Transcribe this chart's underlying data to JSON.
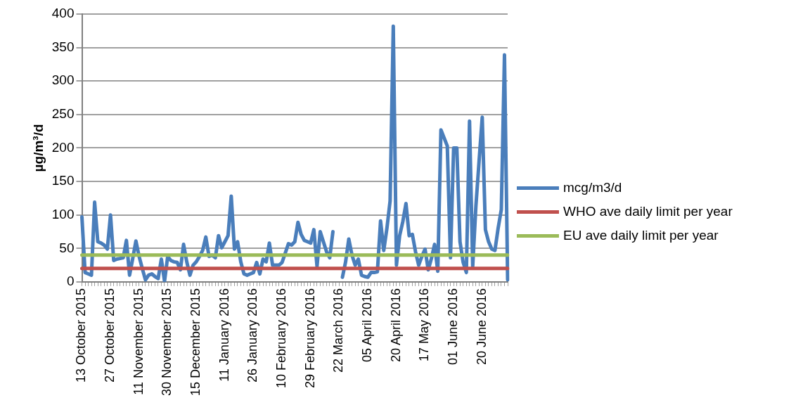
{
  "chart_data": {
    "type": "line",
    "ylabel": "µg/m³/d",
    "categories": [
      "13 October 2015",
      null,
      null,
      null,
      null,
      null,
      null,
      null,
      null,
      "27 October 2015",
      null,
      null,
      null,
      null,
      null,
      null,
      null,
      null,
      "11 November 2015",
      null,
      null,
      null,
      null,
      null,
      null,
      null,
      null,
      "30 November 2015",
      null,
      null,
      null,
      null,
      null,
      null,
      null,
      null,
      "15 December 2015",
      null,
      null,
      null,
      null,
      null,
      null,
      null,
      null,
      "11 January 2016",
      null,
      null,
      null,
      null,
      null,
      null,
      null,
      null,
      "26 January 2016",
      null,
      null,
      null,
      null,
      null,
      null,
      null,
      null,
      "10 February 2016",
      null,
      null,
      null,
      null,
      null,
      null,
      null,
      null,
      "29 February 2016",
      null,
      null,
      null,
      null,
      null,
      null,
      null,
      null,
      "22 March 2016",
      null,
      null,
      null,
      null,
      null,
      null,
      null,
      null,
      "05 April 2016",
      null,
      null,
      null,
      null,
      null,
      null,
      null,
      null,
      "20 April 2016",
      null,
      null,
      null,
      null,
      null,
      null,
      null,
      null,
      "17 May 2016",
      null,
      null,
      null,
      null,
      null,
      null,
      null,
      null,
      "01 June 2016",
      null,
      null,
      null,
      null,
      null,
      null,
      null,
      null,
      "20 June 2016",
      null,
      null,
      null,
      null,
      null,
      null,
      null,
      null
    ],
    "series": [
      {
        "name": "mcg/m3/d",
        "color": "#4a7ebb",
        "values": [
          97,
          14,
          12,
          10,
          119,
          60,
          58,
          55,
          49,
          100,
          32,
          34,
          35,
          36,
          62,
          10,
          35,
          61,
          38,
          20,
          3,
          10,
          12,
          8,
          5,
          34,
          1,
          38,
          32,
          30,
          29,
          18,
          56,
          30,
          10,
          25,
          30,
          38,
          47,
          67,
          38,
          40,
          36,
          69,
          51,
          60,
          69,
          128,
          49,
          60,
          30,
          12,
          10,
          12,
          14,
          29,
          12,
          34,
          30,
          58,
          25,
          25,
          25,
          29,
          43,
          57,
          55,
          60,
          89,
          71,
          62,
          60,
          58,
          78,
          23,
          75,
          60,
          45,
          36,
          75,
          null,
          null,
          7,
          30,
          64,
          40,
          25,
          34,
          10,
          8,
          7,
          14,
          14,
          15,
          91,
          47,
          80,
          121,
          382,
          25,
          69,
          90,
          117,
          69,
          71,
          45,
          25,
          38,
          49,
          18,
          35,
          56,
          16,
          227,
          215,
          203,
          36,
          200,
          200,
          60,
          29,
          14,
          240,
          23,
          113,
          180,
          246,
          78,
          60,
          49,
          47,
          80,
          108,
          339,
          3
        ]
      },
      {
        "name": "WHO ave daily limit per year",
        "color": "#c0504d",
        "values": [
          20,
          20,
          20,
          20,
          20,
          20,
          20,
          20,
          20,
          20,
          20,
          20,
          20,
          20,
          20,
          20,
          20,
          20,
          20,
          20,
          20,
          20,
          20,
          20,
          20,
          20,
          20,
          20,
          20,
          20,
          20,
          20,
          20,
          20,
          20,
          20,
          20,
          20,
          20,
          20,
          20,
          20,
          20,
          20,
          20,
          20,
          20,
          20,
          20,
          20,
          20,
          20,
          20,
          20,
          20,
          20,
          20,
          20,
          20,
          20,
          20,
          20,
          20,
          20,
          20,
          20,
          20,
          20,
          20,
          20,
          20,
          20,
          20,
          20,
          20,
          20,
          20,
          20,
          20,
          20,
          20,
          20,
          20,
          20,
          20,
          20,
          20,
          20,
          20,
          20,
          20,
          20,
          20,
          20,
          20,
          20,
          20,
          20,
          20,
          20,
          20,
          20,
          20,
          20,
          20,
          20,
          20,
          20,
          20,
          20,
          20,
          20,
          20,
          20,
          20,
          20,
          20,
          20,
          20,
          20,
          20,
          20,
          20,
          20,
          20,
          20,
          20,
          20,
          20,
          20,
          20,
          20,
          20,
          20,
          20
        ]
      },
      {
        "name": "EU ave daily limit per year",
        "color": "#9bbb59",
        "values": [
          40,
          40,
          40,
          40,
          40,
          40,
          40,
          40,
          40,
          40,
          40,
          40,
          40,
          40,
          40,
          40,
          40,
          40,
          40,
          40,
          40,
          40,
          40,
          40,
          40,
          40,
          40,
          40,
          40,
          40,
          40,
          40,
          40,
          40,
          40,
          40,
          40,
          40,
          40,
          40,
          40,
          40,
          40,
          40,
          40,
          40,
          40,
          40,
          40,
          40,
          40,
          40,
          40,
          40,
          40,
          40,
          40,
          40,
          40,
          40,
          40,
          40,
          40,
          40,
          40,
          40,
          40,
          40,
          40,
          40,
          40,
          40,
          40,
          40,
          40,
          40,
          40,
          40,
          40,
          40,
          40,
          40,
          40,
          40,
          40,
          40,
          40,
          40,
          40,
          40,
          40,
          40,
          40,
          40,
          40,
          40,
          40,
          40,
          40,
          40,
          40,
          40,
          40,
          40,
          40,
          40,
          40,
          40,
          40,
          40,
          40,
          40,
          40,
          40,
          40,
          40,
          40,
          40,
          40,
          40,
          40,
          40,
          40,
          40,
          40,
          40,
          40,
          40,
          40,
          40,
          40,
          40,
          40,
          40,
          40
        ]
      }
    ],
    "ylim": [
      0,
      400
    ],
    "yticks": [
      0,
      50,
      100,
      150,
      200,
      250,
      300,
      350,
      400
    ],
    "grid": "y",
    "legend": "right",
    "marker": "none",
    "line_style": "solid"
  }
}
